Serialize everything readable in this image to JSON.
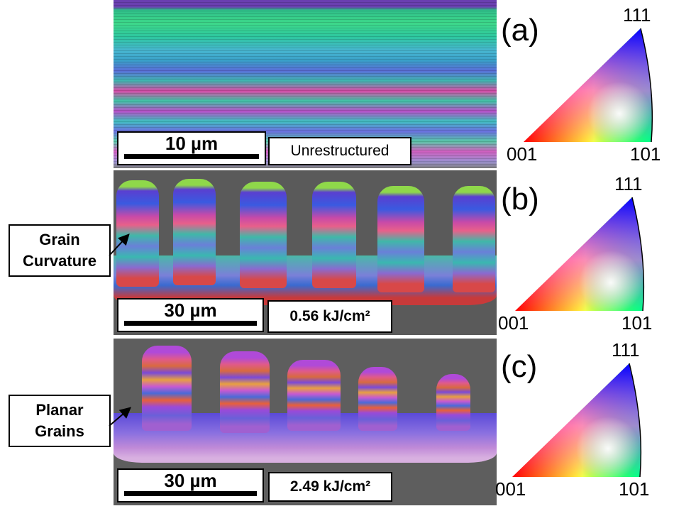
{
  "panels": [
    {
      "label": "(a)",
      "scale_bar": "10 µm",
      "condition": "Unrestructured",
      "triangle": {
        "top": "111",
        "left": "001",
        "right": "101"
      }
    },
    {
      "label": "(b)",
      "scale_bar": "30 µm",
      "condition": "0.56 kJ/cm²",
      "triangle": {
        "top": "111",
        "left": "001",
        "right": "101"
      }
    },
    {
      "label": "(c)",
      "scale_bar": "30 µm",
      "condition": "2.49 kJ/cm²",
      "triangle": {
        "top": "111",
        "left": "001",
        "right": "101"
      }
    }
  ],
  "callouts": [
    {
      "text": "Grain Curvature"
    },
    {
      "text": "Planar Grains"
    }
  ]
}
